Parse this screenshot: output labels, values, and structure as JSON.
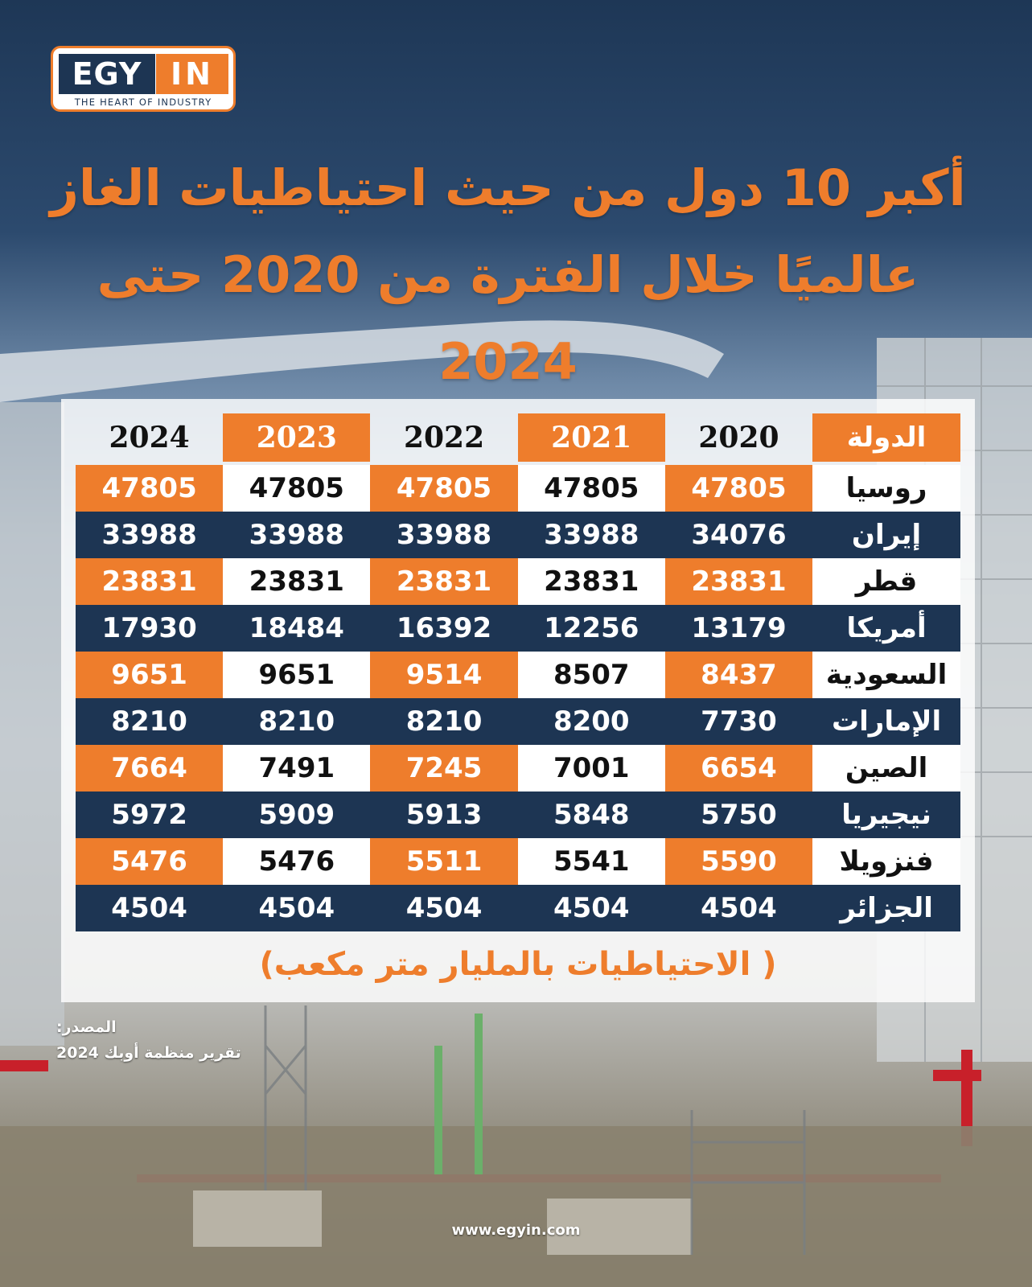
{
  "brand": {
    "logo_left": "EGY",
    "logo_right": "IN",
    "tagline": "THE HEART OF INDUSTRY",
    "website": "www.egyin.com",
    "colors": {
      "orange": "#ee7d2c",
      "navy": "#1d3553"
    }
  },
  "title": {
    "line1": "أكبر 10 دول من حيث احتياطيات الغاز",
    "line2": "عالميًا خلال الفترة من 2020 حتى 2024"
  },
  "table": {
    "country_header": "الدولة",
    "years": [
      "2020",
      "2021",
      "2022",
      "2023",
      "2024"
    ],
    "rows": [
      {
        "country": "روسيا",
        "values": [
          "47805",
          "47805",
          "47805",
          "47805",
          "47805"
        ]
      },
      {
        "country": "إيران",
        "values": [
          "34076",
          "33988",
          "33988",
          "33988",
          "33988"
        ]
      },
      {
        "country": "قطر",
        "values": [
          "23831",
          "23831",
          "23831",
          "23831",
          "23831"
        ]
      },
      {
        "country": "أمريكا",
        "values": [
          "13179",
          "12256",
          "16392",
          "18484",
          "17930"
        ]
      },
      {
        "country": "السعودية",
        "values": [
          "8437",
          "8507",
          "9514",
          "9651",
          "9651"
        ]
      },
      {
        "country": "الإمارات",
        "values": [
          "7730",
          "8200",
          "8210",
          "8210",
          "8210"
        ]
      },
      {
        "country": "الصين",
        "values": [
          "6654",
          "7001",
          "7245",
          "7491",
          "7664"
        ]
      },
      {
        "country": "نيجيريا",
        "values": [
          "5750",
          "5848",
          "5913",
          "5909",
          "5972"
        ]
      },
      {
        "country": "فنزويلا",
        "values": [
          "5590",
          "5541",
          "5511",
          "5476",
          "5476"
        ]
      },
      {
        "country": "الجزائر",
        "values": [
          "4504",
          "4504",
          "4504",
          "4504",
          "4504"
        ]
      }
    ],
    "unit_note": "( الاحتياطيات بالمليار متر مكعب)"
  },
  "source": {
    "label": "المصدر:",
    "value": "تقرير منظمة أوبك 2024"
  }
}
